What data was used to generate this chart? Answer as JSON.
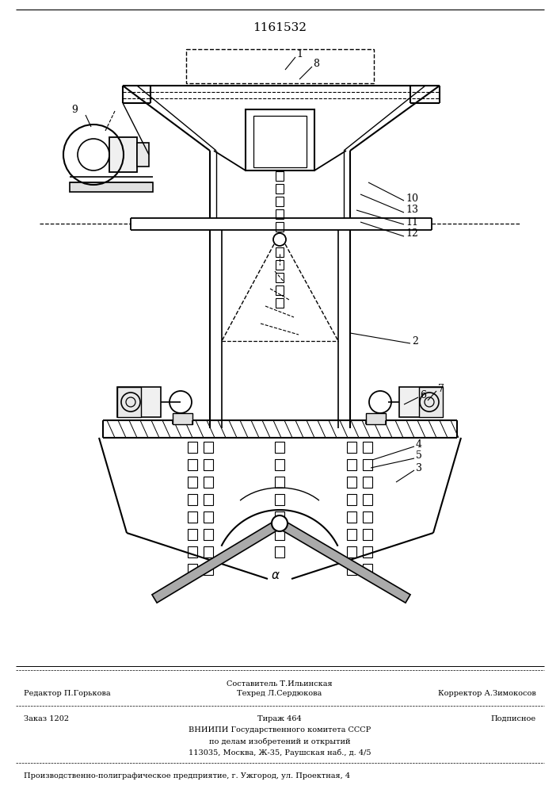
{
  "patent_number": "1161532",
  "bg_color": "#ffffff",
  "lc": "#000000",
  "footer_line1_left": "Редактор П.Горькова",
  "footer_line1_center1": "Составитель Т.Ильинская",
  "footer_line1_center2": "Техред Л.Сердюкова",
  "footer_line1_right": "Корректор А.Зимокосов",
  "footer_line2_left": "Заказ 1202",
  "footer_line2_center": "Тираж 464",
  "footer_line2_right": "Подписное",
  "footer_line3": "ВНИИПИ Государственного комитета СССР",
  "footer_line4": "по делам изобретений и открытий",
  "footer_line5": "113035, Москва, Ж-35, Раушская наб., д. 4/5",
  "footer_line6": "Производственно-полиграфическое предприятие, г. Ужгород, ул. Проектная, 4"
}
